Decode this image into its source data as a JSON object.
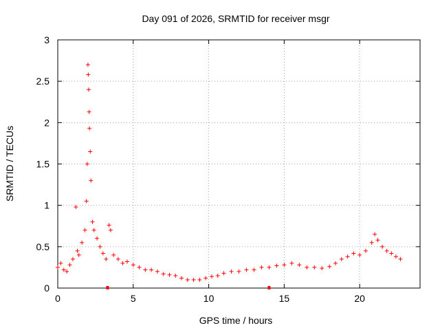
{
  "chart_data": {
    "type": "scatter",
    "title": "Day 091 of 2026, SRMTID for receiver msgr",
    "xlabel": "GPS time / hours",
    "ylabel": "SRMTID / TECUs",
    "xlim": [
      0,
      24
    ],
    "ylim": [
      0,
      3
    ],
    "xticks": [
      0,
      5,
      10,
      15,
      20
    ],
    "xtick_labels": [
      "0",
      "5",
      "10",
      "15",
      "20"
    ],
    "yticks": [
      0,
      0.5,
      1,
      1.5,
      2,
      2.5,
      3
    ],
    "ytick_labels": [
      "0",
      "0.5",
      "1",
      "1.5",
      "2",
      "2.5",
      "3"
    ],
    "grid": true,
    "series_color": "#ff0000",
    "marker": "plus",
    "series": [
      {
        "name": "SRMTID",
        "x": [
          0.0,
          0.2,
          0.4,
          0.6,
          0.8,
          1.0,
          1.2,
          1.3,
          1.4,
          1.6,
          1.8,
          1.9,
          1.95,
          2.0,
          2.02,
          2.05,
          2.08,
          2.1,
          2.15,
          2.2,
          2.3,
          2.4,
          2.6,
          2.8,
          3.0,
          3.2,
          3.4,
          3.5,
          3.7,
          4.0,
          4.3,
          4.6,
          5.0,
          5.4,
          5.8,
          6.2,
          6.6,
          7.0,
          7.4,
          7.8,
          8.2,
          8.6,
          9.0,
          9.4,
          9.8,
          10.2,
          10.6,
          11.0,
          11.5,
          12.0,
          12.5,
          13.0,
          13.5,
          14.0,
          14.5,
          15.0,
          15.5,
          16.0,
          16.5,
          17.0,
          17.5,
          18.0,
          18.4,
          18.8,
          19.2,
          19.6,
          20.0,
          20.4,
          20.8,
          21.0,
          21.2,
          21.5,
          21.8,
          22.1,
          22.4,
          22.7
        ],
        "y": [
          0.25,
          0.3,
          0.22,
          0.2,
          0.28,
          0.35,
          0.98,
          0.45,
          0.4,
          0.55,
          0.7,
          1.05,
          1.5,
          2.7,
          2.58,
          2.4,
          2.13,
          1.93,
          1.65,
          1.3,
          0.8,
          0.7,
          0.6,
          0.5,
          0.42,
          0.35,
          0.76,
          0.7,
          0.4,
          0.35,
          0.3,
          0.32,
          0.28,
          0.25,
          0.22,
          0.22,
          0.2,
          0.17,
          0.16,
          0.15,
          0.12,
          0.1,
          0.1,
          0.1,
          0.12,
          0.14,
          0.15,
          0.18,
          0.2,
          0.2,
          0.22,
          0.22,
          0.25,
          0.25,
          0.27,
          0.28,
          0.3,
          0.28,
          0.25,
          0.25,
          0.24,
          0.26,
          0.3,
          0.35,
          0.38,
          0.42,
          0.4,
          0.45,
          0.55,
          0.65,
          0.58,
          0.5,
          0.45,
          0.42,
          0.38,
          0.35
        ]
      }
    ],
    "zero_markers_x": [
      3.3,
      14.0
    ]
  }
}
